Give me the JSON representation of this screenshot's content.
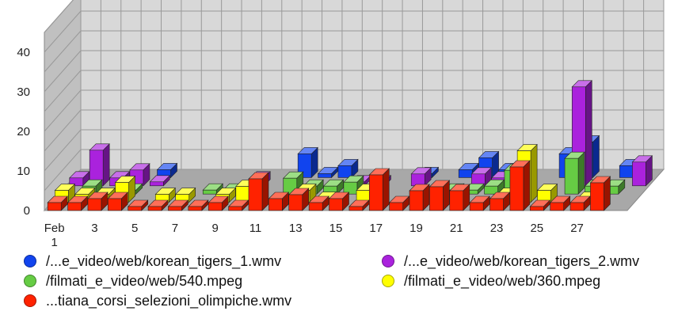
{
  "chart_data": {
    "type": "bar",
    "subtype": "3d-stacked",
    "title": "",
    "xlabel": "",
    "ylabel": "",
    "ylim": [
      0,
      45
    ],
    "grid": true,
    "legend_position": "bottom",
    "y_ticks": [
      "0",
      "10",
      "20",
      "30",
      "40"
    ],
    "x_ticks": [
      {
        "day": 1,
        "label": "Feb"
      },
      {
        "day": 1,
        "label": "1",
        "second_line": true
      },
      {
        "day": 3,
        "label": "3"
      },
      {
        "day": 5,
        "label": "5"
      },
      {
        "day": 7,
        "label": "7"
      },
      {
        "day": 9,
        "label": "9"
      },
      {
        "day": 11,
        "label": "11"
      },
      {
        "day": 13,
        "label": "13"
      },
      {
        "day": 15,
        "label": "15"
      },
      {
        "day": 17,
        "label": "17"
      },
      {
        "day": 19,
        "label": "19"
      },
      {
        "day": 21,
        "label": "21"
      },
      {
        "day": 23,
        "label": "23"
      },
      {
        "day": 25,
        "label": "25"
      },
      {
        "day": 27,
        "label": "27"
      }
    ],
    "categories": [
      "1",
      "2",
      "3",
      "4",
      "5",
      "6",
      "7",
      "8",
      "9",
      "10",
      "11",
      "12",
      "13",
      "14",
      "15",
      "16",
      "17",
      "18",
      "19",
      "20",
      "21",
      "22",
      "23",
      "24",
      "25",
      "26",
      "27",
      "28",
      "29"
    ],
    "series": [
      {
        "name": "...tiana_corsi_selezioni_olimpiche.wmv",
        "color": "#ff2200",
        "values": [
          2,
          2,
          3,
          3,
          1,
          1,
          1,
          1,
          2,
          1,
          8,
          3,
          4,
          2,
          3,
          1,
          9,
          2,
          5,
          6,
          5,
          2,
          3,
          11,
          1,
          2,
          2,
          7,
          0
        ]
      },
      {
        "name": "/filmati_e_video/web/360.mpeg",
        "color": "#ffff00",
        "values": [
          3,
          2,
          2,
          5,
          0,
          2,
          2,
          0,
          2,
          4,
          0,
          0,
          3,
          1,
          0,
          3,
          0,
          0,
          0,
          0,
          0,
          0,
          2,
          13,
          3,
          0,
          1,
          0,
          0
        ]
      },
      {
        "name": "/filmati_e_video/web/540.mpeg",
        "color": "#66cc44",
        "values": [
          0,
          2,
          0,
          1,
          0,
          0,
          0,
          1,
          1,
          1,
          0,
          4,
          2,
          2,
          3,
          1,
          0,
          0,
          0,
          1,
          1,
          2,
          6,
          0,
          0,
          9,
          2,
          2,
          0
        ]
      },
      {
        "name": "/...e_video/web/korean_tigers_2.wmv",
        "color": "#aa22dd",
        "values": [
          2,
          9,
          2,
          4,
          1,
          0,
          0,
          0,
          0,
          2,
          0,
          0,
          0,
          0,
          1,
          1,
          0,
          3,
          0,
          0,
          3,
          2,
          0,
          0,
          0,
          25,
          0,
          0,
          6
        ]
      },
      {
        "name": "/...e_video/web/korean_tigers_1.wmv",
        "color": "#1144ee",
        "values": [
          0,
          0,
          0,
          0,
          2,
          0,
          0,
          0,
          0,
          0,
          0,
          6,
          1,
          3,
          0,
          0,
          0,
          1,
          0,
          2,
          5,
          2,
          0,
          0,
          6,
          9,
          0,
          3,
          0
        ]
      }
    ]
  },
  "legend": {
    "items": [
      {
        "label": "/...e_video/web/korean_tigers_1.wmv",
        "color": "#1144ee"
      },
      {
        "label": "/...e_video/web/korean_tigers_2.wmv",
        "color": "#aa22dd"
      },
      {
        "label": "/filmati_e_video/web/540.mpeg",
        "color": "#66cc44"
      },
      {
        "label": "/filmati_e_video/web/360.mpeg",
        "color": "#ffff00"
      },
      {
        "label": "...tiana_corsi_selezioni_olimpiche.wmv",
        "color": "#ff2200"
      }
    ]
  }
}
